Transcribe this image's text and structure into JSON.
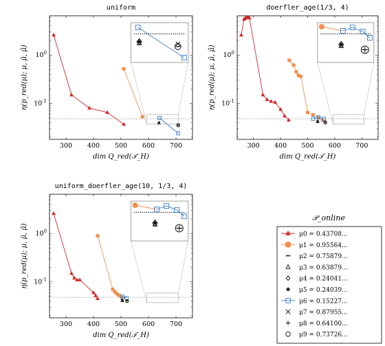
{
  "chart_data": [
    {
      "type": "line",
      "title": "uniform",
      "xlabel": "dim Q_red(𝒯_H)",
      "ylabel": "η(p_red(μ); μ, μ̄, μ̂)",
      "y_scale": "log",
      "xlim": [
        240,
        760
      ],
      "ylim": [
        0.018,
        6.5
      ],
      "xticks": [
        "300",
        "400",
        "500",
        "600",
        "700"
      ],
      "yticks": [
        "10^0",
        "10^-1"
      ],
      "reference_line": 0.048,
      "series": [
        {
          "name": "μ0 = 0.43708...",
          "x": [
            255,
            320,
            385,
            450,
            510
          ],
          "y": [
            2.6,
            0.15,
            0.08,
            0.065,
            0.037
          ]
        },
        {
          "name": "μ1 = 0.95564...",
          "x": [
            510,
            578
          ],
          "y": [
            0.52,
            0.053
          ]
        },
        {
          "name": "μ6 = 0.15227...",
          "x": [
            640,
            708
          ],
          "y": [
            0.05,
            0.024
          ]
        }
      ],
      "singles": [
        {
          "marker": "triangle",
          "x": 638,
          "y": 0.039
        },
        {
          "marker": "star",
          "x": 638,
          "y": 0.04
        },
        {
          "marker": "circle",
          "x": 708,
          "y": 0.035
        },
        {
          "marker": "x",
          "x": 708,
          "y": 0.036
        }
      ],
      "inset": true
    },
    {
      "type": "line",
      "title": "doerfler_age(1/3, 4)",
      "xlabel": "dim Q_red(𝒯_H)",
      "ylabel": "η(p_red(μ); μ, μ̄, μ̂)",
      "y_scale": "log",
      "xlim": [
        240,
        760
      ],
      "ylim": [
        0.018,
        6.5
      ],
      "xticks": [
        "300",
        "400",
        "500",
        "600",
        "700"
      ],
      "yticks": [
        "10^0",
        "10^-1"
      ],
      "reference_line": 0.048,
      "series": [
        {
          "name": "μ0 = 0.43708...",
          "x": [
            255,
            265,
            270,
            275,
            280,
            285,
            335,
            350,
            365,
            380,
            400,
            415,
            430
          ],
          "y": [
            2.6,
            5.5,
            5.8,
            6.0,
            6.1,
            5.9,
            0.15,
            0.12,
            0.11,
            0.105,
            0.075,
            0.055,
            0.045
          ]
        },
        {
          "name": "μ1 = 0.95564...",
          "x": [
            432,
            448,
            458,
            466,
            475,
            500,
            520,
            540,
            555
          ],
          "y": [
            0.78,
            0.62,
            0.45,
            0.38,
            0.36,
            0.065,
            0.058,
            0.05,
            0.045
          ]
        },
        {
          "name": "μ6 = 0.15227...",
          "x": [
            520,
            540,
            560
          ],
          "y": [
            0.048,
            0.052,
            0.048
          ]
        }
      ],
      "singles": [
        {
          "marker": "triangle",
          "x": 537,
          "y": 0.042
        },
        {
          "marker": "star",
          "x": 537,
          "y": 0.043
        },
        {
          "marker": "circle",
          "x": 565,
          "y": 0.04
        },
        {
          "marker": "plus",
          "x": 565,
          "y": 0.041
        }
      ],
      "inset": true
    },
    {
      "type": "line",
      "title": "uniform_doerfler_age(10, 1/3, 4)",
      "xlabel": "dim Q_red(𝒯_H)",
      "ylabel": "η(p_red(μ); μ, μ̄, μ̂)",
      "y_scale": "log",
      "xlim": [
        240,
        760
      ],
      "ylim": [
        0.018,
        6.5
      ],
      "xticks": [
        "300",
        "400",
        "500",
        "600",
        "700"
      ],
      "yticks": [
        "10^0",
        "10^-1"
      ],
      "reference_line": 0.048,
      "series": [
        {
          "name": "μ0 = 0.43708...",
          "x": [
            255,
            320,
            330,
            340,
            350,
            400,
            408,
            415
          ],
          "y": [
            2.6,
            0.15,
            0.12,
            0.11,
            0.11,
            0.06,
            0.052,
            0.045
          ]
        },
        {
          "name": "μ1 = 0.95564...",
          "x": [
            415,
            470,
            478,
            486,
            494,
            502
          ],
          "y": [
            0.9,
            0.07,
            0.062,
            0.056,
            0.052,
            0.048
          ]
        },
        {
          "name": "μ6 = 0.15227...",
          "x": [
            505,
            520
          ],
          "y": [
            0.05,
            0.046
          ]
        }
      ],
      "singles": [
        {
          "marker": "triangle",
          "x": 505,
          "y": 0.041
        },
        {
          "marker": "star",
          "x": 505,
          "y": 0.042
        },
        {
          "marker": "circle",
          "x": 522,
          "y": 0.04
        },
        {
          "marker": "plus",
          "x": 522,
          "y": 0.041
        }
      ],
      "inset": true
    }
  ],
  "legend": {
    "title": "𝒫_online",
    "placement": "bottom-right",
    "entries": [
      {
        "marker": "triangle-filled",
        "color": "#d62728",
        "label": "μ0 = 0.43708..."
      },
      {
        "marker": "circle-filled",
        "color": "#f28e50",
        "label": "μ1 = 0.95564..."
      },
      {
        "marker": "dash",
        "color": "#000000",
        "label": "μ2 = 0.75879..."
      },
      {
        "marker": "triangle",
        "color": "#000000",
        "label": "μ3 = 0.63879..."
      },
      {
        "marker": "diamond",
        "color": "#000000",
        "label": "μ4 = 0.24041..."
      },
      {
        "marker": "star",
        "color": "#000000",
        "label": "μ5 = 0.24039..."
      },
      {
        "marker": "square",
        "color": "#3a7cc1",
        "label": "μ6 = 0.15227..."
      },
      {
        "marker": "x",
        "color": "#000000",
        "label": "μ7 = 0.87955..."
      },
      {
        "marker": "plus",
        "color": "#000000",
        "label": "μ8 = 0.64100..."
      },
      {
        "marker": "circle",
        "color": "#000000",
        "label": "μ9 = 0.73726..."
      }
    ]
  },
  "colors": {
    "mu0": "#d62728",
    "mu1": "#f28e50",
    "mu6": "#3a7cc1"
  }
}
